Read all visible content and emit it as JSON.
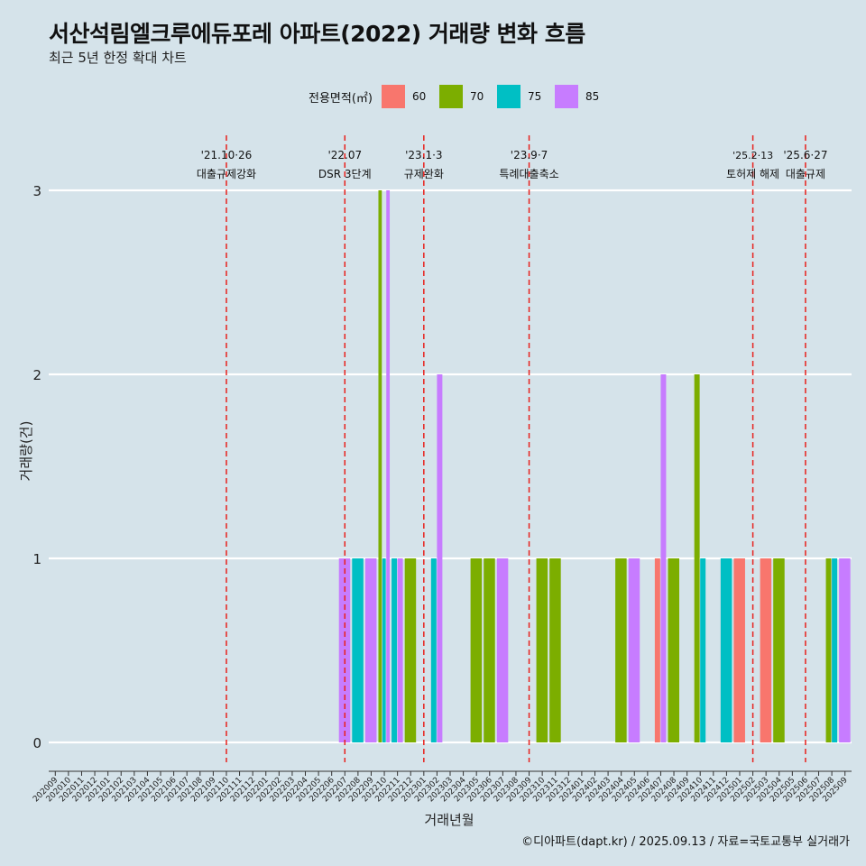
{
  "chart_data": {
    "type": "bar",
    "title": "서산석림엘크루에듀포레 아파트(2022) 거래량 변화 흐름",
    "subtitle": "최근 5년 한정 확대 차트",
    "xlabel": "거래년월",
    "ylabel": "거래량(건)",
    "caption": "©디아파트(dapt.kr) / 2025.09.13 / 자료=국토교통부 실거래가",
    "legend_title": "전용면적(㎡)",
    "legend_position": "top",
    "grid": true,
    "ylim": [
      0,
      3
    ],
    "yticks": [
      0,
      1,
      2,
      3
    ],
    "categories": [
      "202009",
      "202010",
      "202011",
      "202012",
      "202101",
      "202102",
      "202103",
      "202104",
      "202105",
      "202106",
      "202107",
      "202108",
      "202109",
      "202110",
      "202111",
      "202112",
      "202201",
      "202202",
      "202203",
      "202204",
      "202205",
      "202206",
      "202207",
      "202208",
      "202209",
      "202210",
      "202211",
      "202212",
      "202301",
      "202302",
      "202303",
      "202304",
      "202305",
      "202306",
      "202307",
      "202308",
      "202309",
      "202310",
      "202311",
      "202312",
      "202401",
      "202402",
      "202403",
      "202404",
      "202405",
      "202406",
      "202407",
      "202408",
      "202409",
      "202410",
      "202411",
      "202412",
      "202501",
      "202502",
      "202503",
      "202504",
      "202505",
      "202506",
      "202507",
      "202508",
      "202509"
    ],
    "series": [
      {
        "name": "60",
        "color": "#f8766d",
        "values": [
          0,
          0,
          0,
          0,
          0,
          0,
          0,
          0,
          0,
          0,
          0,
          0,
          0,
          0,
          0,
          0,
          0,
          0,
          0,
          0,
          0,
          0,
          0,
          0,
          0,
          0,
          0,
          0,
          0,
          0,
          0,
          0,
          0,
          0,
          0,
          0,
          0,
          0,
          0,
          0,
          0,
          0,
          0,
          0,
          0,
          0,
          1,
          0,
          0,
          0,
          0,
          0,
          1,
          0,
          1,
          0,
          0,
          0,
          0,
          0,
          0
        ]
      },
      {
        "name": "70",
        "color": "#7cae00",
        "values": [
          0,
          0,
          0,
          0,
          0,
          0,
          0,
          0,
          0,
          0,
          0,
          0,
          0,
          0,
          0,
          0,
          0,
          0,
          0,
          0,
          0,
          0,
          0,
          0,
          0,
          3,
          0,
          1,
          0,
          0,
          0,
          0,
          1,
          1,
          0,
          0,
          0,
          1,
          1,
          0,
          0,
          0,
          0,
          1,
          0,
          0,
          0,
          1,
          0,
          2,
          0,
          0,
          0,
          0,
          0,
          1,
          0,
          0,
          0,
          1,
          0
        ]
      },
      {
        "name": "75",
        "color": "#00bfc4",
        "values": [
          0,
          0,
          0,
          0,
          0,
          0,
          0,
          0,
          0,
          0,
          0,
          0,
          0,
          0,
          0,
          0,
          0,
          0,
          0,
          0,
          0,
          0,
          0,
          1,
          0,
          1,
          1,
          0,
          0,
          1,
          0,
          0,
          0,
          0,
          0,
          0,
          0,
          0,
          0,
          0,
          0,
          0,
          0,
          0,
          0,
          0,
          0,
          0,
          0,
          1,
          0,
          1,
          0,
          0,
          0,
          0,
          0,
          0,
          0,
          1,
          0
        ]
      },
      {
        "name": "85",
        "color": "#c77cff",
        "values": [
          0,
          0,
          0,
          0,
          0,
          0,
          0,
          0,
          0,
          0,
          0,
          0,
          0,
          0,
          0,
          0,
          0,
          0,
          0,
          0,
          0,
          0,
          1,
          0,
          1,
          3,
          1,
          0,
          0,
          2,
          0,
          0,
          0,
          0,
          1,
          0,
          0,
          0,
          0,
          0,
          0,
          0,
          0,
          0,
          1,
          0,
          2,
          0,
          0,
          0,
          0,
          0,
          0,
          0,
          0,
          0,
          0,
          0,
          0,
          0,
          1
        ]
      }
    ],
    "annotations": [
      {
        "month": "202110",
        "line1": "'21.10·26",
        "line2": "대출규제강화"
      },
      {
        "month": "202207",
        "line1": "'22.07",
        "line2": "DSR 3단계"
      },
      {
        "month": "202301",
        "line1": "'23.1·3",
        "line2": "규제완화"
      },
      {
        "month": "202309",
        "line1": "'23.9·7",
        "line2": "특례대출축소"
      },
      {
        "month": "202502",
        "line1": "'25.2·13",
        "line2": "토허제 해제"
      },
      {
        "month": "202506",
        "line1": "'25.6·27",
        "line2": "대출규제"
      }
    ]
  }
}
